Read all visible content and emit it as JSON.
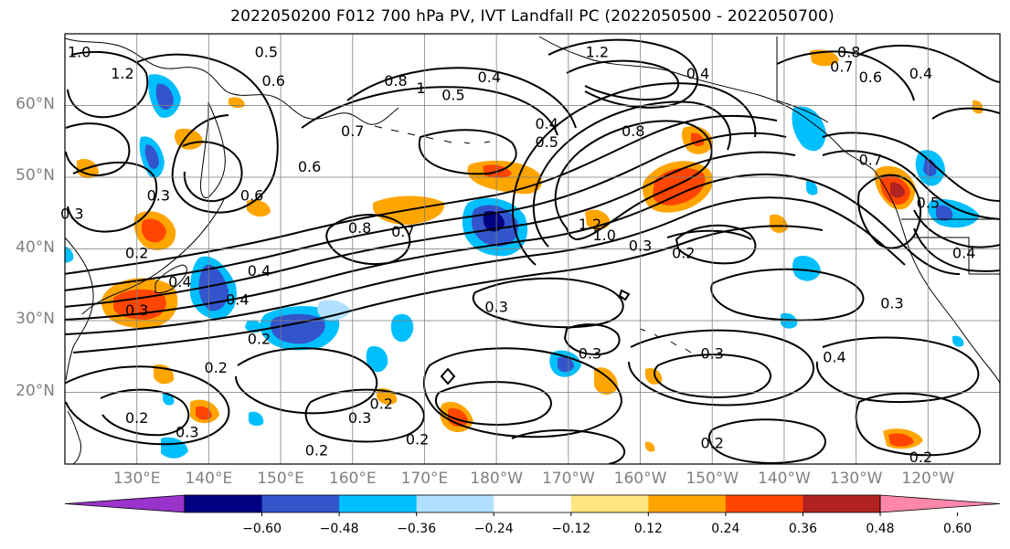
{
  "title": "2022050200 F012 700 hPa PV, IVT Landfall PC (2022050500 - 2022050700)",
  "map": {
    "lat_labels": [
      "60°N",
      "50°N",
      "40°N",
      "30°N",
      "20°N"
    ],
    "lon_labels": [
      "130°E",
      "140°E",
      "150°E",
      "160°E",
      "170°E",
      "180°W",
      "170°W",
      "160°W",
      "150°W",
      "140°W",
      "130°W",
      "120°W"
    ],
    "lat_range": [
      10,
      70
    ],
    "lon_range": [
      120,
      250
    ],
    "grid": true,
    "colors": {
      "contour": "#000000",
      "gridline": "#808080",
      "coast": "#000000",
      "tick_label": "#808080"
    },
    "contour_labels": [
      {
        "text": "1.0",
        "lon": 122,
        "lat": 67.5
      },
      {
        "text": "1.2",
        "lon": 128,
        "lat": 64.5
      },
      {
        "text": "0.5",
        "lon": 148,
        "lat": 67.5
      },
      {
        "text": "0.6",
        "lon": 149,
        "lat": 63.5
      },
      {
        "text": "0.8",
        "lon": 166,
        "lat": 63.5
      },
      {
        "text": "1",
        "lon": 169.5,
        "lat": 62.5
      },
      {
        "text": "0.5",
        "lon": 174,
        "lat": 61.5
      },
      {
        "text": "0.4",
        "lon": 179,
        "lat": 64.0
      },
      {
        "text": "1.2",
        "lon": 194,
        "lat": 67.5
      },
      {
        "text": "0.4",
        "lon": 208,
        "lat": 64.5
      },
      {
        "text": "0.8",
        "lon": 229,
        "lat": 67.5
      },
      {
        "text": "0.7",
        "lon": 228,
        "lat": 65.5
      },
      {
        "text": "0.6",
        "lon": 232,
        "lat": 64.0
      },
      {
        "text": "0.4",
        "lon": 239,
        "lat": 64.5
      },
      {
        "text": "0.7",
        "lon": 160,
        "lat": 56.5
      },
      {
        "text": "0.6",
        "lon": 154,
        "lat": 51.5
      },
      {
        "text": "0.4",
        "lon": 187,
        "lat": 57.5
      },
      {
        "text": "0.5",
        "lon": 187,
        "lat": 55.0
      },
      {
        "text": "0.8",
        "lon": 199,
        "lat": 56.5
      },
      {
        "text": "0.3",
        "lon": 133,
        "lat": 47.5
      },
      {
        "text": "0.3",
        "lon": 121,
        "lat": 45.0
      },
      {
        "text": "0.6",
        "lon": 146,
        "lat": 47.5
      },
      {
        "text": "0.8",
        "lon": 161,
        "lat": 43.0
      },
      {
        "text": "0.7",
        "lon": 167,
        "lat": 42.5
      },
      {
        "text": "1.2",
        "lon": 193,
        "lat": 43.5
      },
      {
        "text": "1.0",
        "lon": 195,
        "lat": 42.0
      },
      {
        "text": "0.3",
        "lon": 200,
        "lat": 40.5
      },
      {
        "text": "0.2",
        "lon": 206,
        "lat": 39.5
      },
      {
        "text": "0.7",
        "lon": 232,
        "lat": 52.5
      },
      {
        "text": "0.5",
        "lon": 240,
        "lat": 46.5
      },
      {
        "text": "0.4",
        "lon": 245,
        "lat": 39.5
      },
      {
        "text": "0.2",
        "lon": 130,
        "lat": 39.5
      },
      {
        "text": "0.4",
        "lon": 136,
        "lat": 35.5
      },
      {
        "text": "0.4",
        "lon": 147,
        "lat": 37.0
      },
      {
        "text": "0.4",
        "lon": 144,
        "lat": 33.0
      },
      {
        "text": "0.3",
        "lon": 130,
        "lat": 31.5
      },
      {
        "text": "0.2",
        "lon": 147,
        "lat": 27.5
      },
      {
        "text": "0.2",
        "lon": 141,
        "lat": 23.5
      },
      {
        "text": "0.3",
        "lon": 180,
        "lat": 32.0
      },
      {
        "text": "0.3",
        "lon": 235,
        "lat": 32.5
      },
      {
        "text": "0.3",
        "lon": 193,
        "lat": 25.5
      },
      {
        "text": "0.3",
        "lon": 210,
        "lat": 25.5
      },
      {
        "text": "0.4",
        "lon": 227,
        "lat": 25.0
      },
      {
        "text": "0.2",
        "lon": 130,
        "lat": 16.5
      },
      {
        "text": "0.3",
        "lon": 137,
        "lat": 14.5
      },
      {
        "text": "0.3",
        "lon": 161,
        "lat": 16.5
      },
      {
        "text": "0.2",
        "lon": 164,
        "lat": 18.5
      },
      {
        "text": "0.2",
        "lon": 169,
        "lat": 13.5
      },
      {
        "text": "0.2",
        "lon": 155,
        "lat": 12.0
      },
      {
        "text": "0.2",
        "lon": 210,
        "lat": 13.0
      },
      {
        "text": "0.2",
        "lon": 239,
        "lat": 11.0
      }
    ]
  },
  "colorbar": {
    "ticks": [
      "−0.60",
      "−0.48",
      "−0.36",
      "−0.24",
      "−0.12",
      "0.12",
      "0.24",
      "0.36",
      "0.48",
      "0.60"
    ],
    "colors": [
      "#9933cc",
      "#000080",
      "#3355cc",
      "#00bfff",
      "#b0e0ff",
      "#ffffff",
      "#ffe680",
      "#ffa500",
      "#ff4500",
      "#b22222",
      "#ff88aa"
    ]
  }
}
